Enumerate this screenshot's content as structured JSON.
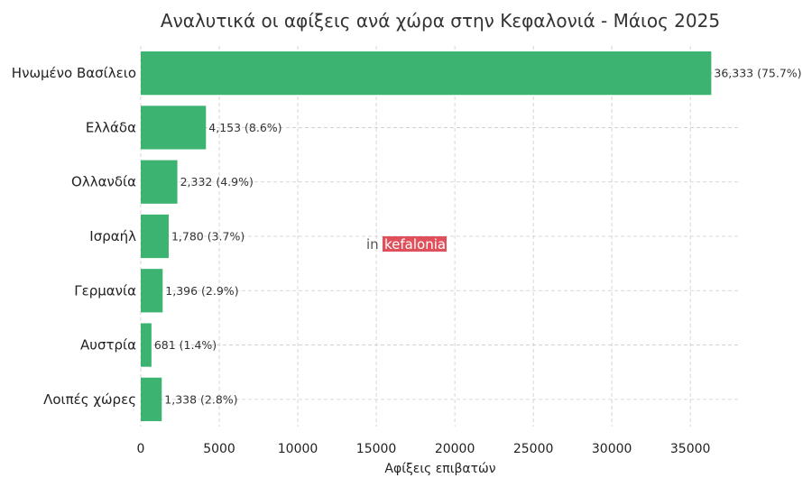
{
  "chart_data": {
    "type": "bar",
    "orientation": "horizontal",
    "title": "Αναλυτικά οι αφίξεις ανά χώρα στην Κεφαλονιά - Μάιος 2025",
    "xlabel": "Αφίξεις επιβατών",
    "ylabel": "",
    "categories": [
      "Ηνωμένο Βασίλειο",
      "Ελλάδα",
      "Ολλανδία",
      "Ισραήλ",
      "Γερμανία",
      "Αυστρία",
      "Λοιπές χώρες"
    ],
    "values": [
      36333,
      4153,
      2332,
      1780,
      1396,
      681,
      1338
    ],
    "value_labels": [
      "36,333 (75.7%)",
      "4,153 (8.6%)",
      "2,332 (4.9%)",
      "1,780 (3.7%)",
      "1,396 (2.9%)",
      "681 (1.4%)",
      "1,338 (2.8%)"
    ],
    "xlim": [
      0,
      38150
    ],
    "xticks": [
      0,
      5000,
      10000,
      15000,
      20000,
      25000,
      30000,
      35000
    ],
    "grid": true,
    "bar_color": "#3cb371"
  },
  "watermark": {
    "prefix": "in",
    "brand": "kefalonia",
    "brand_color": "#e0505a"
  }
}
